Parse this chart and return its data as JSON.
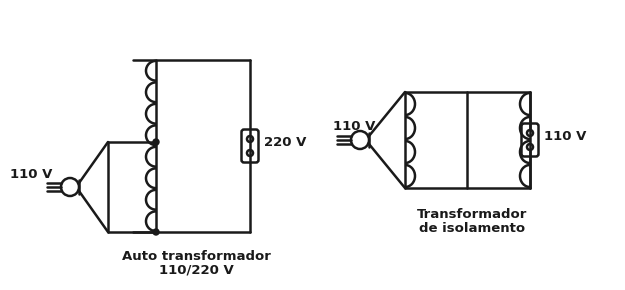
{
  "bg_color": "#ffffff",
  "line_color": "#1a1a1a",
  "lw": 1.8,
  "title1": "Auto transformador",
  "title1b": "110/220 V",
  "title2": "Transformador",
  "title2b": "de isolamento",
  "label_110v_left1": "110 V",
  "label_220v": "220 V",
  "label_110v_left2": "110 V",
  "label_110v_right2": "110 V"
}
